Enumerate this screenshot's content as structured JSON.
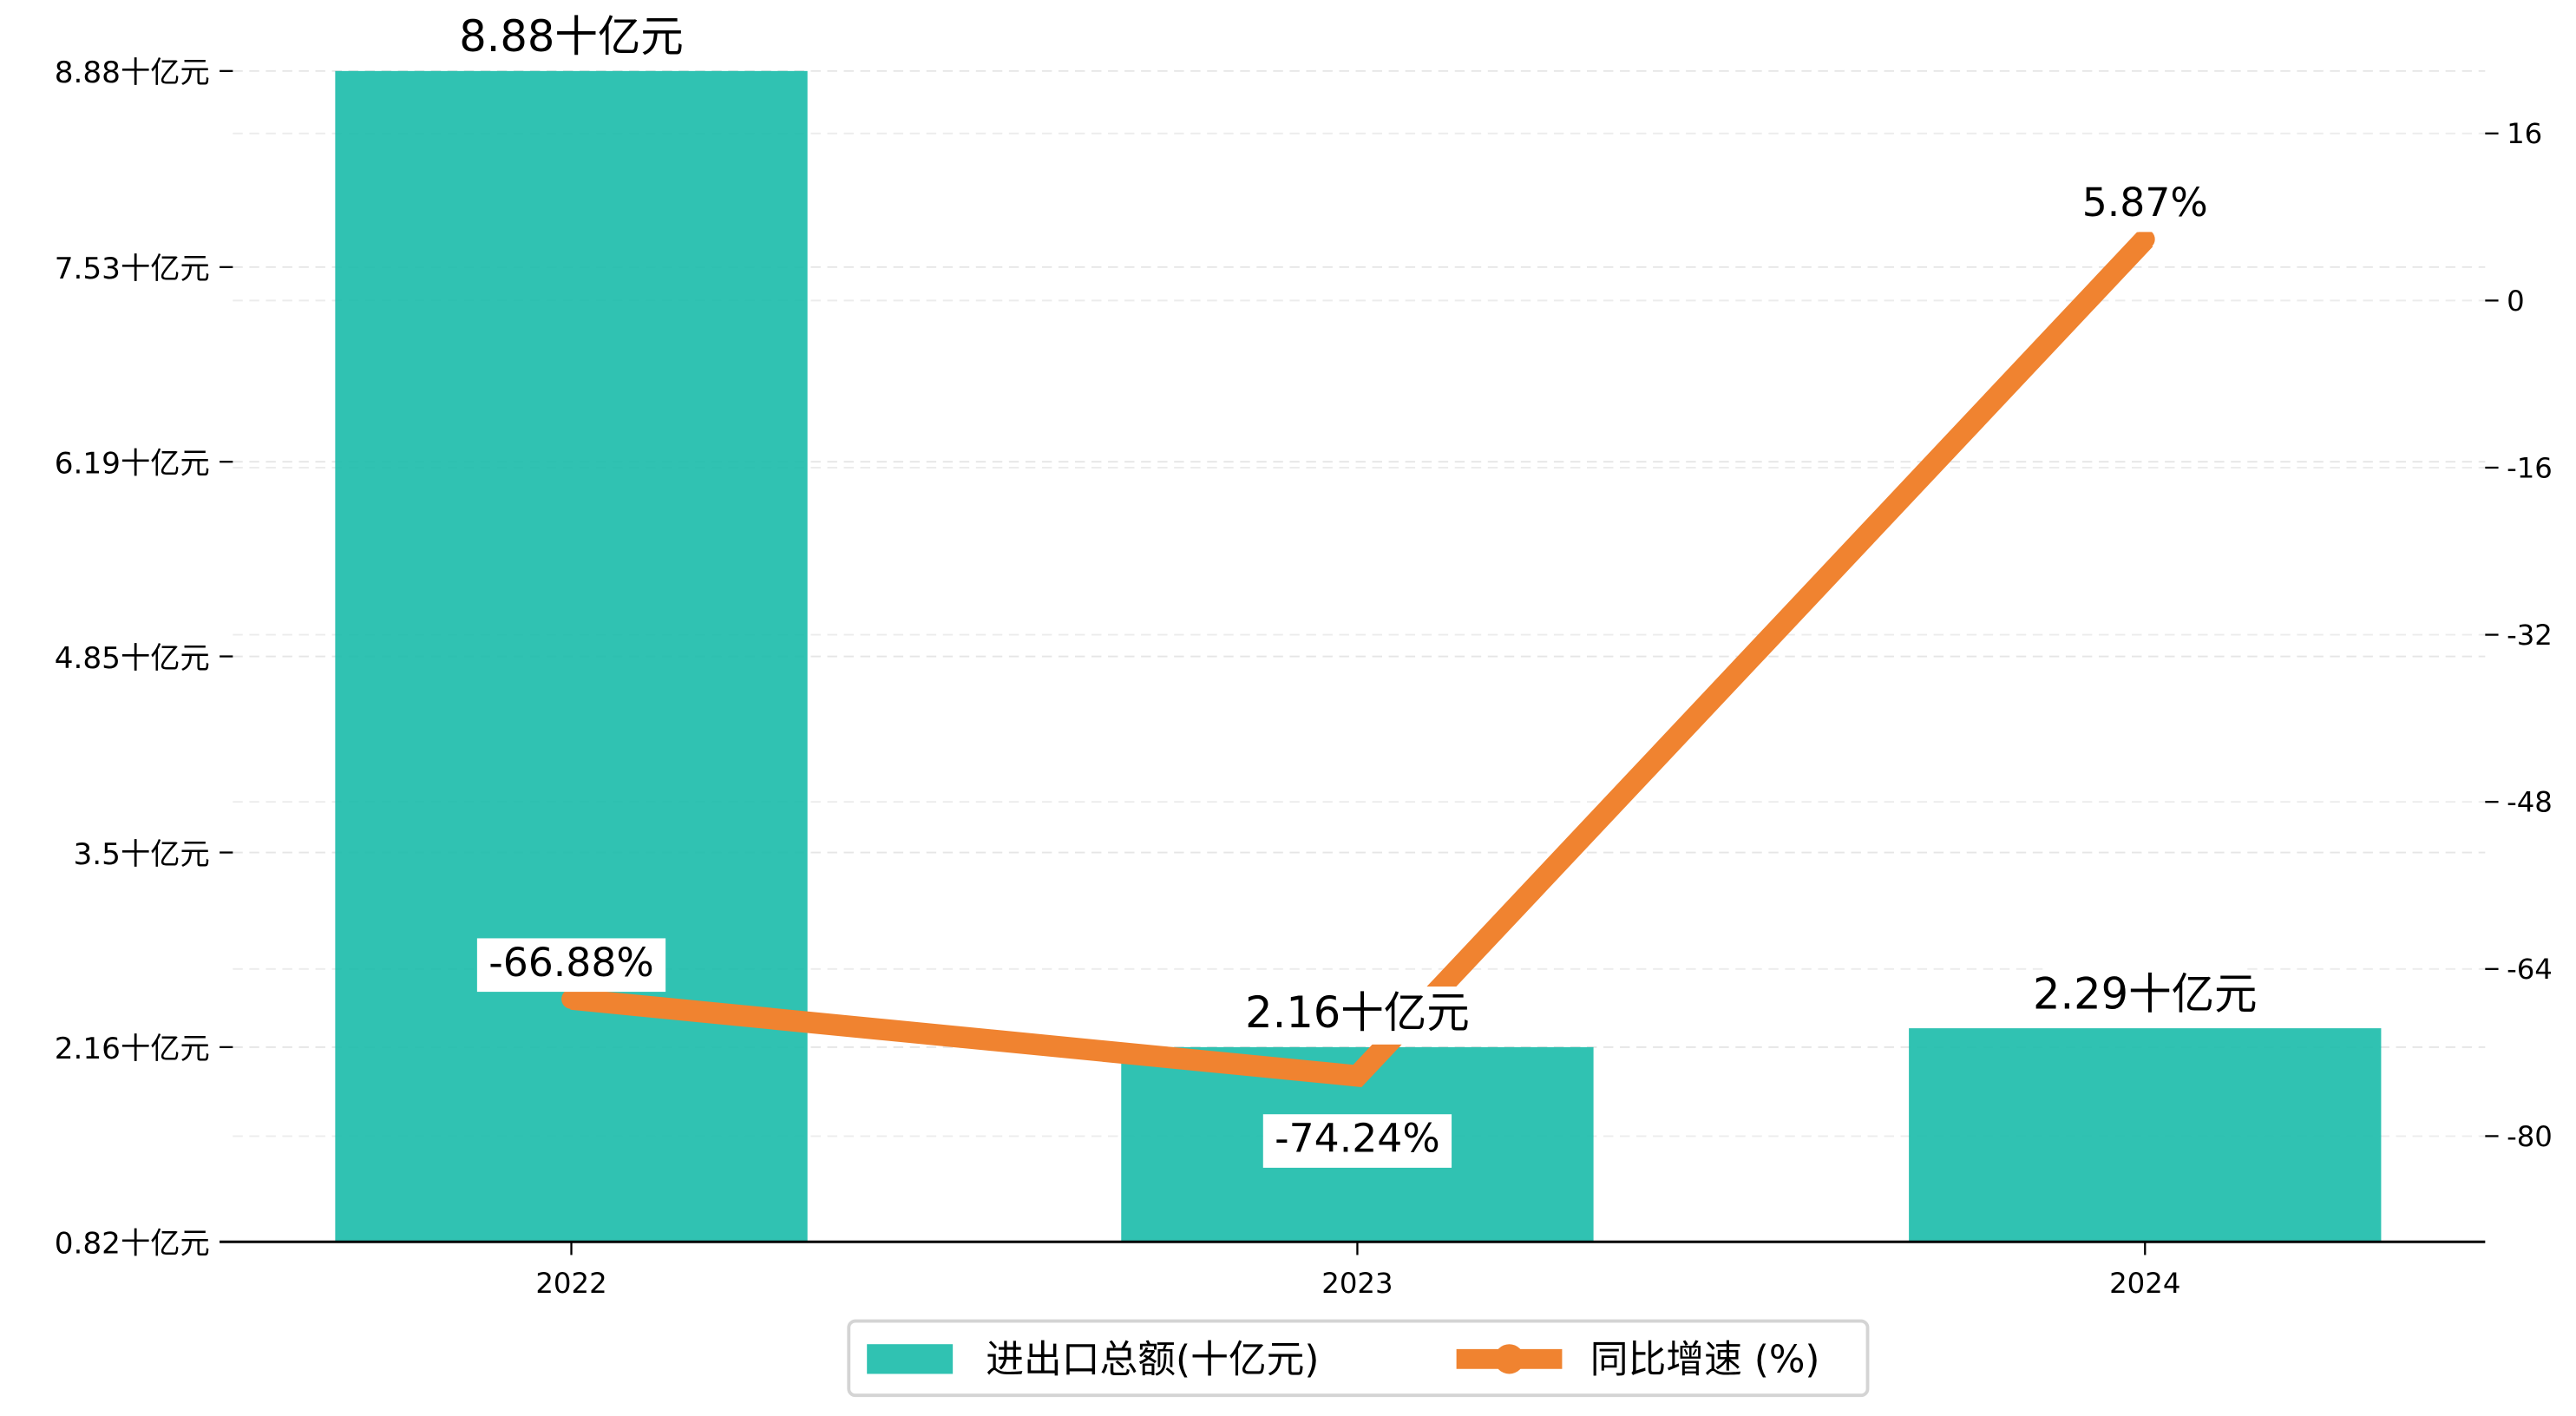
{
  "chart_data": {
    "type": "bar+line",
    "categories": [
      "2022",
      "2023",
      "2024"
    ],
    "series": [
      {
        "name": "进出口总额(十亿元)",
        "type": "bar",
        "axis": "left",
        "values": [
          8.88,
          2.16,
          2.29
        ],
        "labels": [
          "8.88十亿元",
          "2.16十亿元",
          "2.29十亿元"
        ],
        "color": "#1ABBAA"
      },
      {
        "name": "同比增速 (%)",
        "type": "line",
        "axis": "right",
        "values": [
          -66.88,
          -74.24,
          5.87
        ],
        "labels": [
          "-66.88%",
          "-74.24%",
          "5.87%"
        ],
        "color": "#F08330"
      }
    ],
    "left_axis": {
      "ylim": [
        0.82,
        8.88
      ],
      "ticks": [
        0.82,
        2.16,
        3.5,
        4.85,
        6.19,
        7.53,
        8.88
      ],
      "tick_labels": [
        "0.82十亿元",
        "2.16十亿元",
        "3.5十亿元",
        "4.85十亿元",
        "6.19十亿元",
        "7.53十亿元",
        "8.88十亿元"
      ]
    },
    "right_axis": {
      "ylim": [
        -90.3,
        22
      ],
      "ticks": [
        -80,
        -64,
        -48,
        -32,
        -16,
        0,
        16
      ],
      "tick_labels": [
        "-80",
        "-64",
        "-48",
        "-32",
        "-16",
        "0",
        "16"
      ]
    },
    "grid": true,
    "legend_placement": "bottom-center",
    "title": "",
    "xlabel": "",
    "ylabel": ""
  }
}
